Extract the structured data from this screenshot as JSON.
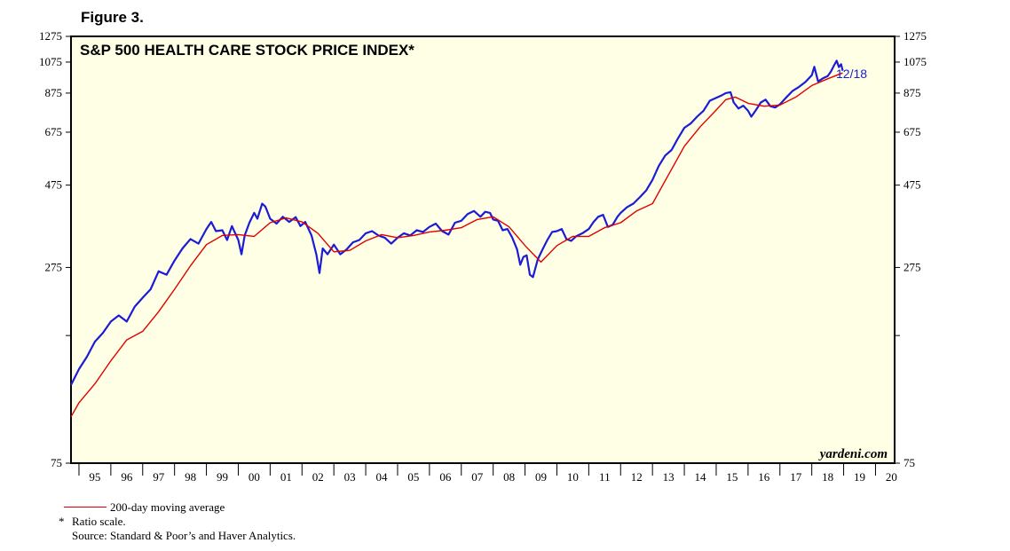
{
  "figure_label": "Figure 3.",
  "chart_data": {
    "type": "line",
    "title": "S&P 500 HEALTH CARE STOCK PRICE INDEX*",
    "scale": "log",
    "ylim": [
      75,
      1275
    ],
    "xlim": [
      1994.75,
      2020.6
    ],
    "y_ticks_labeled": [
      75,
      275,
      475,
      675,
      875,
      1075,
      1275
    ],
    "y_ticks_minor": [
      175
    ],
    "x_tick_labels": [
      "95",
      "96",
      "97",
      "98",
      "99",
      "00",
      "01",
      "02",
      "03",
      "04",
      "05",
      "06",
      "07",
      "08",
      "09",
      "10",
      "11",
      "12",
      "13",
      "14",
      "15",
      "16",
      "17",
      "18",
      "19",
      "20"
    ],
    "x_tick_years": [
      1995,
      1996,
      1997,
      1998,
      1999,
      2000,
      2001,
      2002,
      2003,
      2004,
      2005,
      2006,
      2007,
      2008,
      2009,
      2010,
      2011,
      2012,
      2013,
      2014,
      2015,
      2016,
      2017,
      2018,
      2019,
      2020
    ],
    "series": [
      {
        "name": "S&P 500 Health Care Stock Price Index",
        "color": "#1c1cd6",
        "points": [
          [
            1994.75,
            126
          ],
          [
            1995.0,
            140
          ],
          [
            1995.25,
            152
          ],
          [
            1995.5,
            168
          ],
          [
            1995.75,
            178
          ],
          [
            1996.0,
            192
          ],
          [
            1996.25,
            200
          ],
          [
            1996.5,
            192
          ],
          [
            1996.75,
            212
          ],
          [
            1997.0,
            225
          ],
          [
            1997.25,
            238
          ],
          [
            1997.5,
            268
          ],
          [
            1997.75,
            262
          ],
          [
            1998.0,
            288
          ],
          [
            1998.25,
            312
          ],
          [
            1998.5,
            332
          ],
          [
            1998.75,
            322
          ],
          [
            1999.0,
            355
          ],
          [
            1999.15,
            372
          ],
          [
            1999.3,
            350
          ],
          [
            1999.5,
            352
          ],
          [
            1999.65,
            330
          ],
          [
            1999.8,
            362
          ],
          [
            2000.0,
            330
          ],
          [
            2000.1,
            300
          ],
          [
            2000.2,
            340
          ],
          [
            2000.35,
            370
          ],
          [
            2000.5,
            395
          ],
          [
            2000.6,
            380
          ],
          [
            2000.75,
            420
          ],
          [
            2000.85,
            412
          ],
          [
            2001.0,
            380
          ],
          [
            2001.2,
            368
          ],
          [
            2001.4,
            385
          ],
          [
            2001.6,
            372
          ],
          [
            2001.8,
            384
          ],
          [
            2001.95,
            362
          ],
          [
            2002.1,
            372
          ],
          [
            2002.3,
            340
          ],
          [
            2002.45,
            300
          ],
          [
            2002.55,
            265
          ],
          [
            2002.65,
            312
          ],
          [
            2002.8,
            300
          ],
          [
            2003.0,
            320
          ],
          [
            2003.2,
            300
          ],
          [
            2003.4,
            310
          ],
          [
            2003.6,
            325
          ],
          [
            2003.8,
            330
          ],
          [
            2004.0,
            345
          ],
          [
            2004.2,
            350
          ],
          [
            2004.4,
            340
          ],
          [
            2004.6,
            335
          ],
          [
            2004.8,
            322
          ],
          [
            2005.0,
            335
          ],
          [
            2005.2,
            345
          ],
          [
            2005.4,
            340
          ],
          [
            2005.6,
            352
          ],
          [
            2005.8,
            348
          ],
          [
            2006.0,
            360
          ],
          [
            2006.2,
            368
          ],
          [
            2006.4,
            350
          ],
          [
            2006.6,
            342
          ],
          [
            2006.8,
            370
          ],
          [
            2007.0,
            375
          ],
          [
            2007.2,
            392
          ],
          [
            2007.4,
            400
          ],
          [
            2007.6,
            385
          ],
          [
            2007.75,
            398
          ],
          [
            2007.9,
            395
          ],
          [
            2008.0,
            378
          ],
          [
            2008.15,
            375
          ],
          [
            2008.3,
            352
          ],
          [
            2008.45,
            355
          ],
          [
            2008.6,
            335
          ],
          [
            2008.75,
            310
          ],
          [
            2008.85,
            280
          ],
          [
            2008.95,
            295
          ],
          [
            2009.05,
            298
          ],
          [
            2009.15,
            262
          ],
          [
            2009.25,
            258
          ],
          [
            2009.4,
            290
          ],
          [
            2009.55,
            310
          ],
          [
            2009.7,
            330
          ],
          [
            2009.85,
            348
          ],
          [
            2010.0,
            350
          ],
          [
            2010.15,
            355
          ],
          [
            2010.3,
            332
          ],
          [
            2010.45,
            328
          ],
          [
            2010.6,
            338
          ],
          [
            2010.8,
            345
          ],
          [
            2011.0,
            355
          ],
          [
            2011.15,
            372
          ],
          [
            2011.3,
            385
          ],
          [
            2011.45,
            390
          ],
          [
            2011.6,
            360
          ],
          [
            2011.75,
            365
          ],
          [
            2011.9,
            385
          ],
          [
            2012.0,
            395
          ],
          [
            2012.2,
            410
          ],
          [
            2012.4,
            420
          ],
          [
            2012.6,
            438
          ],
          [
            2012.8,
            458
          ],
          [
            2013.0,
            492
          ],
          [
            2013.2,
            540
          ],
          [
            2013.4,
            578
          ],
          [
            2013.6,
            600
          ],
          [
            2013.8,
            648
          ],
          [
            2014.0,
            695
          ],
          [
            2014.2,
            715
          ],
          [
            2014.4,
            748
          ],
          [
            2014.6,
            778
          ],
          [
            2014.8,
            832
          ],
          [
            2015.0,
            848
          ],
          [
            2015.15,
            860
          ],
          [
            2015.3,
            875
          ],
          [
            2015.45,
            880
          ],
          [
            2015.55,
            822
          ],
          [
            2015.7,
            790
          ],
          [
            2015.85,
            805
          ],
          [
            2016.0,
            778
          ],
          [
            2016.1,
            748
          ],
          [
            2016.25,
            782
          ],
          [
            2016.4,
            822
          ],
          [
            2016.55,
            838
          ],
          [
            2016.7,
            802
          ],
          [
            2016.85,
            795
          ],
          [
            2017.0,
            812
          ],
          [
            2017.2,
            850
          ],
          [
            2017.4,
            888
          ],
          [
            2017.6,
            912
          ],
          [
            2017.8,
            942
          ],
          [
            2018.0,
            985
          ],
          [
            2018.08,
            1042
          ],
          [
            2018.2,
            945
          ],
          [
            2018.35,
            965
          ],
          [
            2018.5,
            980
          ],
          [
            2018.6,
            1010
          ],
          [
            2018.7,
            1052
          ],
          [
            2018.78,
            1085
          ],
          [
            2018.85,
            1040
          ],
          [
            2018.92,
            1060
          ],
          [
            2018.97,
            1015
          ]
        ]
      },
      {
        "name": "200-day moving average",
        "color": "#e00000",
        "points": [
          [
            1994.75,
            102
          ],
          [
            1995.0,
            112
          ],
          [
            1995.5,
            127
          ],
          [
            1996.0,
            148
          ],
          [
            1996.5,
            170
          ],
          [
            1997.0,
            180
          ],
          [
            1997.5,
            205
          ],
          [
            1998.0,
            238
          ],
          [
            1998.5,
            278
          ],
          [
            1999.0,
            320
          ],
          [
            1999.5,
            340
          ],
          [
            2000.0,
            342
          ],
          [
            2000.5,
            338
          ],
          [
            2001.0,
            370
          ],
          [
            2001.5,
            382
          ],
          [
            2002.0,
            372
          ],
          [
            2002.5,
            345
          ],
          [
            2003.0,
            305
          ],
          [
            2003.5,
            308
          ],
          [
            2004.0,
            328
          ],
          [
            2004.5,
            342
          ],
          [
            2005.0,
            335
          ],
          [
            2005.5,
            340
          ],
          [
            2006.0,
            348
          ],
          [
            2006.5,
            352
          ],
          [
            2007.0,
            358
          ],
          [
            2007.5,
            378
          ],
          [
            2008.0,
            385
          ],
          [
            2008.5,
            360
          ],
          [
            2009.0,
            318
          ],
          [
            2009.5,
            285
          ],
          [
            2010.0,
            318
          ],
          [
            2010.5,
            338
          ],
          [
            2011.0,
            338
          ],
          [
            2011.5,
            358
          ],
          [
            2012.0,
            370
          ],
          [
            2012.5,
            400
          ],
          [
            2013.0,
            420
          ],
          [
            2013.5,
            508
          ],
          [
            2014.0,
            615
          ],
          [
            2014.5,
            700
          ],
          [
            2015.0,
            782
          ],
          [
            2015.3,
            838
          ],
          [
            2015.6,
            852
          ],
          [
            2016.0,
            818
          ],
          [
            2016.5,
            802
          ],
          [
            2017.0,
            808
          ],
          [
            2017.5,
            852
          ],
          [
            2018.0,
            920
          ],
          [
            2018.5,
            962
          ],
          [
            2018.97,
            1000
          ]
        ]
      }
    ],
    "annotations": [
      {
        "text": "12/18",
        "color": "#1c1cd6"
      },
      {
        "text": "yardeni.com"
      }
    ],
    "legend": [
      {
        "label": "200-day moving average",
        "color": "#e00000"
      }
    ],
    "footnotes": {
      "star": "*",
      "ratio": "Ratio scale.",
      "source": "Source: Standard & Poor’s and Haver Analytics."
    },
    "background": "#ffffe6",
    "grid": false
  }
}
